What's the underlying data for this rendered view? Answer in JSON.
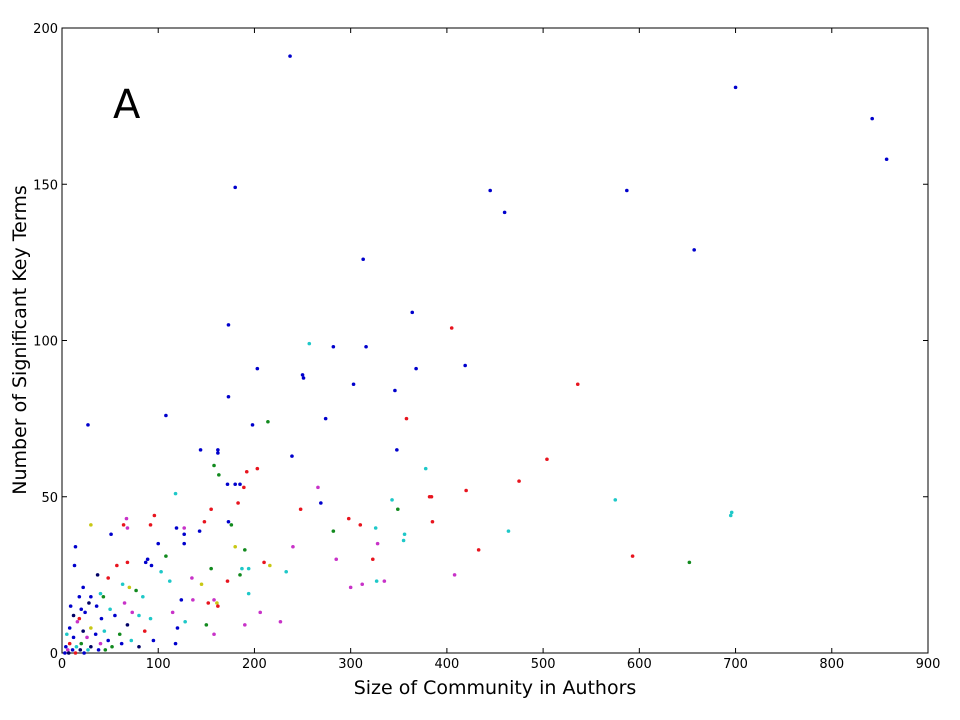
{
  "chart_data": {
    "type": "scatter",
    "panel_label": "A",
    "xlabel": "Size of Community in Authors",
    "ylabel": "Number of Significant Key Terms",
    "xlim": [
      0,
      900
    ],
    "ylim": [
      0,
      200
    ],
    "xticks": [
      0,
      100,
      200,
      300,
      400,
      500,
      600,
      700,
      800,
      900
    ],
    "yticks": [
      0,
      50,
      100,
      150,
      200
    ],
    "grid": false,
    "legend": "none",
    "colors": {
      "blue": "#0000cc",
      "red": "#e8141e",
      "cyan": "#1ec8c8",
      "green": "#128a1e",
      "magenta": "#c832c8",
      "yellow": "#c8c814",
      "navy": "#000066"
    },
    "points": [
      {
        "x": 237,
        "y": 191,
        "c": "blue"
      },
      {
        "x": 700,
        "y": 181,
        "c": "blue"
      },
      {
        "x": 842,
        "y": 171,
        "c": "blue"
      },
      {
        "x": 857,
        "y": 158,
        "c": "blue"
      },
      {
        "x": 180,
        "y": 149,
        "c": "blue"
      },
      {
        "x": 445,
        "y": 148,
        "c": "blue"
      },
      {
        "x": 587,
        "y": 148,
        "c": "blue"
      },
      {
        "x": 460,
        "y": 141,
        "c": "blue"
      },
      {
        "x": 657,
        "y": 129,
        "c": "blue"
      },
      {
        "x": 313,
        "y": 126,
        "c": "blue"
      },
      {
        "x": 364,
        "y": 109,
        "c": "blue"
      },
      {
        "x": 173,
        "y": 105,
        "c": "blue"
      },
      {
        "x": 405,
        "y": 104,
        "c": "red"
      },
      {
        "x": 257,
        "y": 99,
        "c": "cyan"
      },
      {
        "x": 282,
        "y": 98,
        "c": "blue"
      },
      {
        "x": 316,
        "y": 98,
        "c": "blue"
      },
      {
        "x": 419,
        "y": 92,
        "c": "blue"
      },
      {
        "x": 203,
        "y": 91,
        "c": "blue"
      },
      {
        "x": 368,
        "y": 91,
        "c": "blue"
      },
      {
        "x": 250,
        "y": 89,
        "c": "blue"
      },
      {
        "x": 251,
        "y": 88,
        "c": "blue"
      },
      {
        "x": 303,
        "y": 86,
        "c": "blue"
      },
      {
        "x": 536,
        "y": 86,
        "c": "red"
      },
      {
        "x": 346,
        "y": 84,
        "c": "blue"
      },
      {
        "x": 173,
        "y": 82,
        "c": "blue"
      },
      {
        "x": 108,
        "y": 76,
        "c": "blue"
      },
      {
        "x": 274,
        "y": 75,
        "c": "blue"
      },
      {
        "x": 358,
        "y": 75,
        "c": "red"
      },
      {
        "x": 214,
        "y": 74,
        "c": "green"
      },
      {
        "x": 27,
        "y": 73,
        "c": "blue"
      },
      {
        "x": 198,
        "y": 73,
        "c": "blue"
      },
      {
        "x": 144,
        "y": 65,
        "c": "blue"
      },
      {
        "x": 162,
        "y": 65,
        "c": "blue"
      },
      {
        "x": 348,
        "y": 65,
        "c": "blue"
      },
      {
        "x": 162,
        "y": 64,
        "c": "blue"
      },
      {
        "x": 239,
        "y": 63,
        "c": "blue"
      },
      {
        "x": 504,
        "y": 62,
        "c": "red"
      },
      {
        "x": 158,
        "y": 60,
        "c": "green"
      },
      {
        "x": 378,
        "y": 59,
        "c": "cyan"
      },
      {
        "x": 203,
        "y": 59,
        "c": "red"
      },
      {
        "x": 192,
        "y": 58,
        "c": "red"
      },
      {
        "x": 163,
        "y": 57,
        "c": "green"
      },
      {
        "x": 475,
        "y": 55,
        "c": "red"
      },
      {
        "x": 172,
        "y": 54,
        "c": "blue"
      },
      {
        "x": 180,
        "y": 54,
        "c": "blue"
      },
      {
        "x": 185,
        "y": 54,
        "c": "blue"
      },
      {
        "x": 189,
        "y": 53,
        "c": "red"
      },
      {
        "x": 266,
        "y": 53,
        "c": "magenta"
      },
      {
        "x": 420,
        "y": 52,
        "c": "red"
      },
      {
        "x": 118,
        "y": 51,
        "c": "cyan"
      },
      {
        "x": 382,
        "y": 50,
        "c": "red"
      },
      {
        "x": 384,
        "y": 50,
        "c": "red"
      },
      {
        "x": 575,
        "y": 49,
        "c": "cyan"
      },
      {
        "x": 343,
        "y": 49,
        "c": "cyan"
      },
      {
        "x": 269,
        "y": 48,
        "c": "blue"
      },
      {
        "x": 183,
        "y": 48,
        "c": "red"
      },
      {
        "x": 155,
        "y": 46,
        "c": "red"
      },
      {
        "x": 248,
        "y": 46,
        "c": "red"
      },
      {
        "x": 349,
        "y": 46,
        "c": "green"
      },
      {
        "x": 696,
        "y": 45,
        "c": "cyan"
      },
      {
        "x": 695,
        "y": 44,
        "c": "cyan"
      },
      {
        "x": 96,
        "y": 44,
        "c": "red"
      },
      {
        "x": 298,
        "y": 43,
        "c": "red"
      },
      {
        "x": 67,
        "y": 43,
        "c": "magenta"
      },
      {
        "x": 148,
        "y": 42,
        "c": "red"
      },
      {
        "x": 173,
        "y": 42,
        "c": "blue"
      },
      {
        "x": 385,
        "y": 42,
        "c": "red"
      },
      {
        "x": 30,
        "y": 41,
        "c": "yellow"
      },
      {
        "x": 64,
        "y": 41,
        "c": "red"
      },
      {
        "x": 92,
        "y": 41,
        "c": "red"
      },
      {
        "x": 176,
        "y": 41,
        "c": "green"
      },
      {
        "x": 310,
        "y": 41,
        "c": "red"
      },
      {
        "x": 119,
        "y": 40,
        "c": "blue"
      },
      {
        "x": 127,
        "y": 40,
        "c": "magenta"
      },
      {
        "x": 68,
        "y": 40,
        "c": "magenta"
      },
      {
        "x": 326,
        "y": 40,
        "c": "cyan"
      },
      {
        "x": 143,
        "y": 39,
        "c": "blue"
      },
      {
        "x": 282,
        "y": 39,
        "c": "green"
      },
      {
        "x": 464,
        "y": 39,
        "c": "cyan"
      },
      {
        "x": 51,
        "y": 38,
        "c": "blue"
      },
      {
        "x": 127,
        "y": 38,
        "c": "blue"
      },
      {
        "x": 356,
        "y": 38,
        "c": "cyan"
      },
      {
        "x": 355,
        "y": 36,
        "c": "cyan"
      },
      {
        "x": 100,
        "y": 35,
        "c": "blue"
      },
      {
        "x": 127,
        "y": 35,
        "c": "blue"
      },
      {
        "x": 328,
        "y": 35,
        "c": "magenta"
      },
      {
        "x": 14,
        "y": 34,
        "c": "blue"
      },
      {
        "x": 180,
        "y": 34,
        "c": "yellow"
      },
      {
        "x": 240,
        "y": 34,
        "c": "magenta"
      },
      {
        "x": 433,
        "y": 33,
        "c": "red"
      },
      {
        "x": 190,
        "y": 33,
        "c": "green"
      },
      {
        "x": 108,
        "y": 31,
        "c": "green"
      },
      {
        "x": 593,
        "y": 31,
        "c": "red"
      },
      {
        "x": 89,
        "y": 30,
        "c": "blue"
      },
      {
        "x": 285,
        "y": 30,
        "c": "magenta"
      },
      {
        "x": 323,
        "y": 30,
        "c": "red"
      },
      {
        "x": 652,
        "y": 29,
        "c": "green"
      },
      {
        "x": 68,
        "y": 29,
        "c": "red"
      },
      {
        "x": 87,
        "y": 29,
        "c": "blue"
      },
      {
        "x": 93,
        "y": 28,
        "c": "blue"
      },
      {
        "x": 57,
        "y": 28,
        "c": "red"
      },
      {
        "x": 13,
        "y": 28,
        "c": "blue"
      },
      {
        "x": 210,
        "y": 29,
        "c": "red"
      },
      {
        "x": 216,
        "y": 28,
        "c": "yellow"
      },
      {
        "x": 187,
        "y": 27,
        "c": "cyan"
      },
      {
        "x": 194,
        "y": 27,
        "c": "cyan"
      },
      {
        "x": 155,
        "y": 27,
        "c": "green"
      },
      {
        "x": 233,
        "y": 26,
        "c": "cyan"
      },
      {
        "x": 103,
        "y": 26,
        "c": "cyan"
      },
      {
        "x": 408,
        "y": 25,
        "c": "magenta"
      },
      {
        "x": 185,
        "y": 25,
        "c": "green"
      },
      {
        "x": 37,
        "y": 25,
        "c": "navy"
      },
      {
        "x": 48,
        "y": 24,
        "c": "red"
      },
      {
        "x": 135,
        "y": 24,
        "c": "magenta"
      },
      {
        "x": 172,
        "y": 23,
        "c": "red"
      },
      {
        "x": 335,
        "y": 23,
        "c": "magenta"
      },
      {
        "x": 327,
        "y": 23,
        "c": "cyan"
      },
      {
        "x": 112,
        "y": 23,
        "c": "cyan"
      },
      {
        "x": 312,
        "y": 22,
        "c": "magenta"
      },
      {
        "x": 145,
        "y": 22,
        "c": "yellow"
      },
      {
        "x": 63,
        "y": 22,
        "c": "cyan"
      },
      {
        "x": 300,
        "y": 21,
        "c": "magenta"
      },
      {
        "x": 22,
        "y": 21,
        "c": "blue"
      },
      {
        "x": 70,
        "y": 21,
        "c": "yellow"
      },
      {
        "x": 77,
        "y": 20,
        "c": "green"
      },
      {
        "x": 40,
        "y": 19,
        "c": "cyan"
      },
      {
        "x": 194,
        "y": 19,
        "c": "cyan"
      },
      {
        "x": 30,
        "y": 18,
        "c": "blue"
      },
      {
        "x": 43,
        "y": 18,
        "c": "green"
      },
      {
        "x": 84,
        "y": 18,
        "c": "cyan"
      },
      {
        "x": 18,
        "y": 18,
        "c": "blue"
      },
      {
        "x": 124,
        "y": 17,
        "c": "blue"
      },
      {
        "x": 136,
        "y": 17,
        "c": "magenta"
      },
      {
        "x": 158,
        "y": 17,
        "c": "magenta"
      },
      {
        "x": 28,
        "y": 16,
        "c": "navy"
      },
      {
        "x": 152,
        "y": 16,
        "c": "red"
      },
      {
        "x": 161,
        "y": 16,
        "c": "yellow"
      },
      {
        "x": 65,
        "y": 16,
        "c": "magenta"
      },
      {
        "x": 9,
        "y": 15,
        "c": "blue"
      },
      {
        "x": 36,
        "y": 15,
        "c": "blue"
      },
      {
        "x": 162,
        "y": 15,
        "c": "red"
      },
      {
        "x": 20,
        "y": 14,
        "c": "blue"
      },
      {
        "x": 50,
        "y": 14,
        "c": "cyan"
      },
      {
        "x": 73,
        "y": 13,
        "c": "magenta"
      },
      {
        "x": 206,
        "y": 13,
        "c": "magenta"
      },
      {
        "x": 115,
        "y": 13,
        "c": "magenta"
      },
      {
        "x": 24,
        "y": 13,
        "c": "blue"
      },
      {
        "x": 12,
        "y": 12,
        "c": "navy"
      },
      {
        "x": 55,
        "y": 12,
        "c": "blue"
      },
      {
        "x": 80,
        "y": 12,
        "c": "cyan"
      },
      {
        "x": 18,
        "y": 11,
        "c": "red"
      },
      {
        "x": 41,
        "y": 11,
        "c": "blue"
      },
      {
        "x": 92,
        "y": 11,
        "c": "cyan"
      },
      {
        "x": 227,
        "y": 10,
        "c": "magenta"
      },
      {
        "x": 128,
        "y": 10,
        "c": "cyan"
      },
      {
        "x": 16,
        "y": 10,
        "c": "magenta"
      },
      {
        "x": 190,
        "y": 9,
        "c": "magenta"
      },
      {
        "x": 150,
        "y": 9,
        "c": "green"
      },
      {
        "x": 68,
        "y": 9,
        "c": "navy"
      },
      {
        "x": 8,
        "y": 8,
        "c": "blue"
      },
      {
        "x": 30,
        "y": 8,
        "c": "yellow"
      },
      {
        "x": 120,
        "y": 8,
        "c": "blue"
      },
      {
        "x": 44,
        "y": 7,
        "c": "cyan"
      },
      {
        "x": 22,
        "y": 7,
        "c": "navy"
      },
      {
        "x": 86,
        "y": 7,
        "c": "red"
      },
      {
        "x": 158,
        "y": 6,
        "c": "magenta"
      },
      {
        "x": 5,
        "y": 6,
        "c": "cyan"
      },
      {
        "x": 35,
        "y": 6,
        "c": "blue"
      },
      {
        "x": 60,
        "y": 6,
        "c": "green"
      },
      {
        "x": 12,
        "y": 5,
        "c": "blue"
      },
      {
        "x": 26,
        "y": 5,
        "c": "magenta"
      },
      {
        "x": 48,
        "y": 4,
        "c": "blue"
      },
      {
        "x": 72,
        "y": 4,
        "c": "cyan"
      },
      {
        "x": 95,
        "y": 4,
        "c": "blue"
      },
      {
        "x": 8,
        "y": 3,
        "c": "red"
      },
      {
        "x": 20,
        "y": 3,
        "c": "green"
      },
      {
        "x": 40,
        "y": 3,
        "c": "magenta"
      },
      {
        "x": 62,
        "y": 3,
        "c": "blue"
      },
      {
        "x": 118,
        "y": 3,
        "c": "blue"
      },
      {
        "x": 4,
        "y": 2,
        "c": "blue"
      },
      {
        "x": 15,
        "y": 2,
        "c": "cyan"
      },
      {
        "x": 30,
        "y": 2,
        "c": "navy"
      },
      {
        "x": 52,
        "y": 2,
        "c": "green"
      },
      {
        "x": 80,
        "y": 2,
        "c": "navy"
      },
      {
        "x": 6,
        "y": 1,
        "c": "magenta"
      },
      {
        "x": 11,
        "y": 1,
        "c": "blue"
      },
      {
        "x": 19,
        "y": 1,
        "c": "navy"
      },
      {
        "x": 27,
        "y": 1,
        "c": "cyan"
      },
      {
        "x": 38,
        "y": 1,
        "c": "blue"
      },
      {
        "x": 45,
        "y": 1,
        "c": "green"
      },
      {
        "x": 3,
        "y": 0,
        "c": "blue"
      },
      {
        "x": 7,
        "y": 0,
        "c": "navy"
      },
      {
        "x": 14,
        "y": 0,
        "c": "red"
      },
      {
        "x": 23,
        "y": 0,
        "c": "blue"
      }
    ]
  }
}
